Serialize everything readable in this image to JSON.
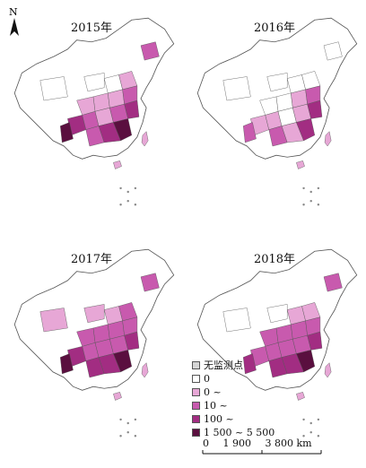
{
  "panels": [
    {
      "id": "p2015",
      "year": "2015年"
    },
    {
      "id": "p2016",
      "year": "2016年"
    },
    {
      "id": "p2017",
      "year": "2017年"
    },
    {
      "id": "p2018",
      "year": "2018年"
    }
  ],
  "north_label": "N",
  "legend": {
    "items": [
      {
        "label": "无监测点",
        "color": "#d6d6d6"
      },
      {
        "label": "0",
        "color": "#ffffff"
      },
      {
        "label": "0 ~",
        "color": "#e7a7d6"
      },
      {
        "label": "10 ~",
        "color": "#c85aae"
      },
      {
        "label": "100 ~",
        "color": "#a22d82"
      },
      {
        "label": "1 500 ~ 5 500",
        "color": "#5a0f3f"
      }
    ]
  },
  "scale_bar": {
    "ticks": [
      "0",
      "1 900",
      "3 800 km"
    ]
  },
  "colors": {
    "boundary": "#555555",
    "no_data": "#d6d6d6",
    "zero": "#ffffff",
    "low": "#e7a7d6",
    "mid": "#c85aae",
    "high": "#a22d82",
    "very_high": "#5a0f3f"
  }
}
